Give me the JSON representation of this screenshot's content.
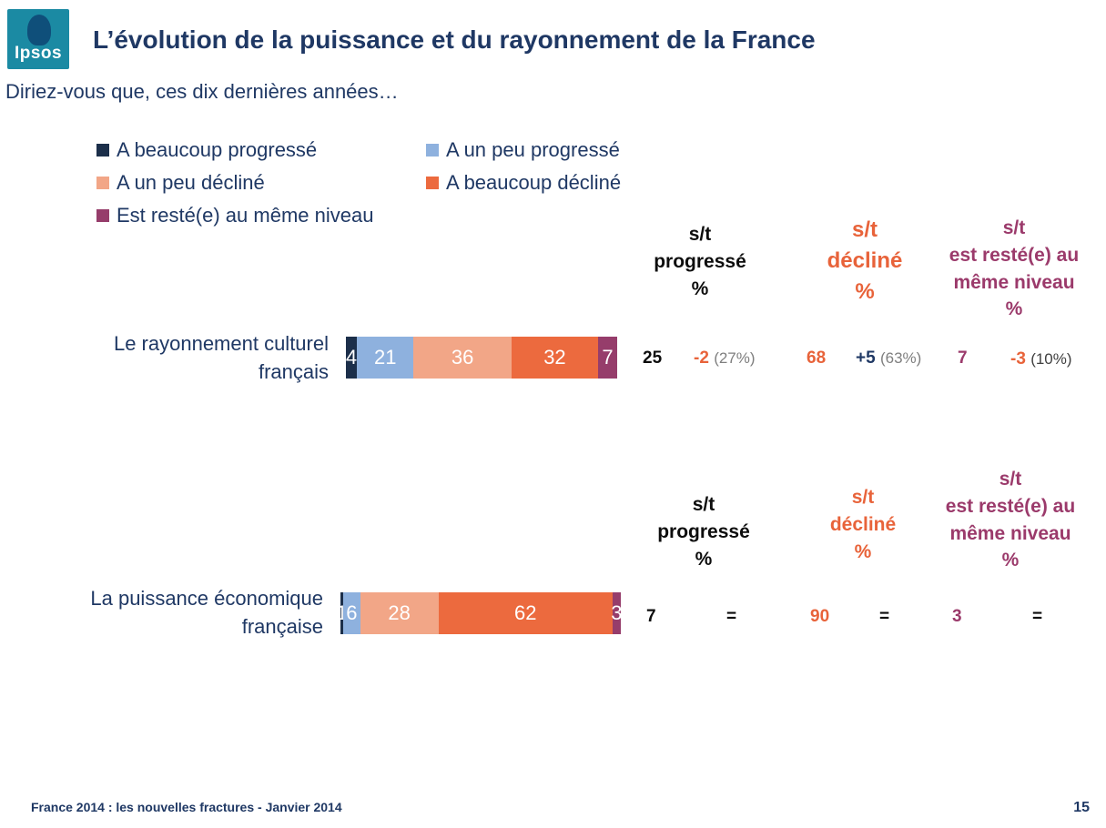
{
  "header": {
    "logo_text": "Ipsos",
    "title": "L’évolution de la puissance et du rayonnement de la France",
    "subtitle": "Diriez-vous que, ces dix dernières années…"
  },
  "colors": {
    "beaucoup_progresse": "#1c2f4a",
    "un_peu_progresse": "#8eb1de",
    "un_peu_decline": "#f2a687",
    "beaucoup_decline": "#ec6a3e",
    "meme_niveau": "#963d6b",
    "text_blue": "#1f3864",
    "orange": "#e8633a",
    "purple": "#9b3a6b"
  },
  "chart_data": {
    "type": "bar",
    "orientation": "horizontal-stacked-100",
    "legend": [
      "A beaucoup progressé",
      "A un peu progressé",
      "A un peu décliné",
      "A beaucoup décliné",
      "Est resté(e) au même niveau"
    ],
    "column_headers": [
      {
        "lines": [
          "s/t",
          "progressé",
          "%"
        ]
      },
      {
        "lines": [
          "s/t",
          "décliné",
          "%"
        ]
      },
      {
        "lines": [
          "s/t",
          "est resté(e) au",
          "même niveau",
          "%"
        ]
      }
    ],
    "rows": [
      {
        "label_lines": [
          "Le rayonnement culturel",
          "français"
        ],
        "values": [
          4,
          21,
          36,
          32,
          7
        ],
        "labels": [
          "4",
          "21",
          "36",
          "32",
          "7"
        ],
        "st_progresse": {
          "value": "25",
          "delta": "-2",
          "prev": "(27%)"
        },
        "st_decline": {
          "value": "68",
          "delta": "+5",
          "prev": "(63%)"
        },
        "st_meme": {
          "value": "7",
          "delta": "-3",
          "prev": "(10%)"
        }
      },
      {
        "label_lines": [
          "La puissance économique",
          "française"
        ],
        "values": [
          1,
          6,
          28,
          62,
          3
        ],
        "labels": [
          "1",
          "6",
          "28",
          "62",
          "3"
        ],
        "st_progresse": {
          "value": "7",
          "delta": "=",
          "prev": ""
        },
        "st_decline": {
          "value": "90",
          "delta": "=",
          "prev": ""
        },
        "st_meme": {
          "value": "3",
          "delta": "=",
          "prev": ""
        }
      }
    ]
  },
  "footer": {
    "text": "France 2014 : les nouvelles fractures - Janvier 2014",
    "page": "15"
  }
}
